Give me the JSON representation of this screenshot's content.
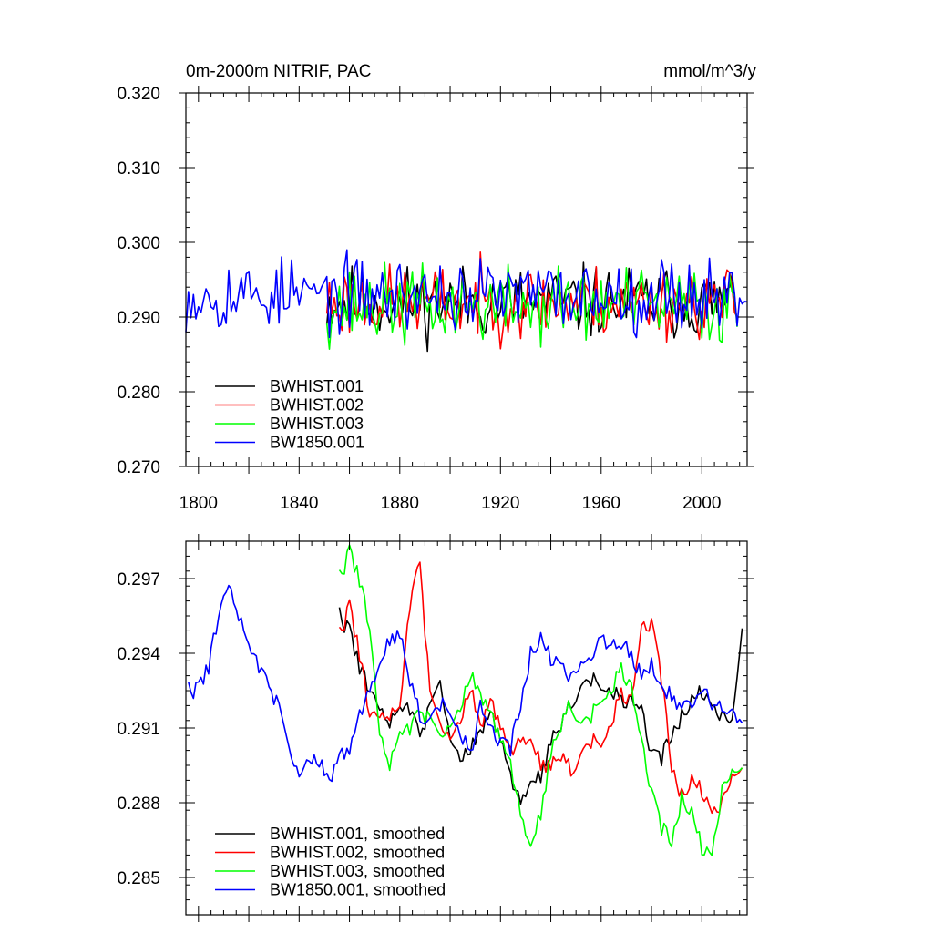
{
  "chart_data": [
    {
      "type": "line",
      "title": "0m-2000m NITRIF, PAC",
      "units": "mmol/m^3/y",
      "xlim": [
        1795,
        2018
      ],
      "ylim": [
        0.27,
        0.32
      ],
      "xticks": [
        1800,
        1840,
        1880,
        1920,
        1960,
        2000
      ],
      "xtick_labels": [
        "1800",
        "1840",
        "1880",
        "1920",
        "1960",
        "2000"
      ],
      "yticks": [
        0.27,
        0.28,
        0.29,
        0.3,
        0.31,
        0.32
      ],
      "ytick_labels": [
        "0.270",
        "0.280",
        "0.290",
        "0.300",
        "0.310",
        "0.320"
      ],
      "legend_position": "bottom-left",
      "series": [
        {
          "name": "BWHIST.001",
          "color": "#000000",
          "x_start": 1851,
          "x_end": 2014,
          "mean": 0.292,
          "amplitude": 0.0045,
          "seed": 11
        },
        {
          "name": "BWHIST.002",
          "color": "#ff0000",
          "x_start": 1851,
          "x_end": 2014,
          "mean": 0.292,
          "amplitude": 0.0045,
          "seed": 23
        },
        {
          "name": "BWHIST.003",
          "color": "#00ff00",
          "x_start": 1851,
          "x_end": 2014,
          "mean": 0.2915,
          "amplitude": 0.0048,
          "seed": 37
        },
        {
          "name": "BW1850.001",
          "color": "#0000ff",
          "x_start": 1795,
          "x_end": 2018,
          "mean": 0.293,
          "amplitude": 0.0045,
          "seed": 53
        }
      ]
    },
    {
      "type": "line",
      "xlim": [
        1795,
        2018
      ],
      "ylim": [
        0.2835,
        0.2985
      ],
      "xticks": [
        1800,
        1840,
        1880,
        1920,
        1960,
        2000
      ],
      "yticks": [
        0.285,
        0.288,
        0.291,
        0.294,
        0.297
      ],
      "ytick_labels": [
        "0.285",
        "0.288",
        "0.291",
        "0.294",
        "0.297"
      ],
      "legend_position": "bottom-left",
      "series": [
        {
          "name": "BWHIST.001, smoothed",
          "color": "#000000",
          "x": [
            1856,
            1860,
            1864,
            1868,
            1872,
            1876,
            1880,
            1884,
            1888,
            1892,
            1896,
            1900,
            1904,
            1908,
            1912,
            1916,
            1920,
            1924,
            1928,
            1932,
            1936,
            1940,
            1944,
            1948,
            1952,
            1956,
            1960,
            1964,
            1968,
            1972,
            1976,
            1980,
            1984,
            1988,
            1992,
            1996,
            2000,
            2004,
            2008,
            2012,
            2016
          ],
          "y": [
            0.2955,
            0.2948,
            0.2935,
            0.2925,
            0.2915,
            0.2912,
            0.292,
            0.2918,
            0.2905,
            0.292,
            0.2927,
            0.2905,
            0.29,
            0.29,
            0.291,
            0.2915,
            0.2905,
            0.289,
            0.288,
            0.2888,
            0.289,
            0.2905,
            0.2912,
            0.292,
            0.2925,
            0.293,
            0.2925,
            0.2925,
            0.2922,
            0.292,
            0.2918,
            0.29,
            0.2898,
            0.2908,
            0.2915,
            0.292,
            0.2925,
            0.2918,
            0.2915,
            0.2912,
            0.295
          ]
        },
        {
          "name": "BWHIST.002, smoothed",
          "color": "#ff0000",
          "x": [
            1856,
            1860,
            1864,
            1868,
            1872,
            1876,
            1880,
            1884,
            1888,
            1892,
            1896,
            1900,
            1904,
            1908,
            1912,
            1916,
            1920,
            1924,
            1928,
            1932,
            1936,
            1940,
            1944,
            1948,
            1952,
            1956,
            1960,
            1964,
            1968,
            1972,
            1976,
            1980,
            1984,
            1988,
            1992,
            1996,
            2000,
            2004,
            2008,
            2012,
            2016
          ],
          "y": [
            0.2947,
            0.2958,
            0.294,
            0.2915,
            0.2912,
            0.2915,
            0.292,
            0.296,
            0.2975,
            0.2925,
            0.291,
            0.2905,
            0.2915,
            0.2925,
            0.2912,
            0.292,
            0.291,
            0.29,
            0.2905,
            0.2905,
            0.2895,
            0.2895,
            0.29,
            0.2893,
            0.2898,
            0.2905,
            0.2902,
            0.2912,
            0.2925,
            0.292,
            0.295,
            0.2953,
            0.293,
            0.2895,
            0.2883,
            0.2888,
            0.2885,
            0.2875,
            0.288,
            0.289,
            0.2894
          ]
        },
        {
          "name": "BWHIST.003, smoothed",
          "color": "#00ff00",
          "x": [
            1856,
            1860,
            1864,
            1868,
            1872,
            1876,
            1880,
            1884,
            1888,
            1892,
            1896,
            1900,
            1904,
            1908,
            1912,
            1916,
            1920,
            1924,
            1928,
            1932,
            1936,
            1940,
            1944,
            1948,
            1952,
            1956,
            1960,
            1964,
            1968,
            1972,
            1976,
            1980,
            1984,
            1988,
            1992,
            1996,
            2000,
            2004,
            2008,
            2012,
            2016
          ],
          "y": [
            0.297,
            0.298,
            0.297,
            0.295,
            0.2905,
            0.2895,
            0.291,
            0.291,
            0.2915,
            0.2915,
            0.2905,
            0.291,
            0.292,
            0.293,
            0.2925,
            0.2915,
            0.2905,
            0.2895,
            0.2875,
            0.2862,
            0.2875,
            0.29,
            0.2912,
            0.292,
            0.291,
            0.2915,
            0.292,
            0.2925,
            0.2935,
            0.2925,
            0.2905,
            0.2885,
            0.287,
            0.2865,
            0.2882,
            0.2875,
            0.2862,
            0.2858,
            0.2885,
            0.2892,
            0.2894
          ]
        },
        {
          "name": "BW1850.001, smoothed",
          "color": "#0000ff",
          "x": [
            1796,
            1800,
            1804,
            1808,
            1812,
            1816,
            1820,
            1824,
            1828,
            1832,
            1836,
            1840,
            1844,
            1848,
            1852,
            1856,
            1860,
            1864,
            1868,
            1872,
            1876,
            1880,
            1884,
            1888,
            1892,
            1896,
            1900,
            1904,
            1908,
            1912,
            1916,
            1920,
            1924,
            1928,
            1932,
            1936,
            1940,
            1944,
            1948,
            1952,
            1956,
            1960,
            1964,
            1968,
            1972,
            1976,
            1980,
            1984,
            1988,
            1992,
            1996,
            2000,
            2004,
            2008,
            2012,
            2016
          ],
          "y": [
            0.2925,
            0.2925,
            0.2935,
            0.2955,
            0.2965,
            0.2955,
            0.2945,
            0.2935,
            0.2925,
            0.292,
            0.29,
            0.289,
            0.29,
            0.2895,
            0.289,
            0.2898,
            0.29,
            0.2915,
            0.2925,
            0.2935,
            0.2945,
            0.2948,
            0.293,
            0.2915,
            0.2912,
            0.292,
            0.2915,
            0.2908,
            0.29,
            0.2918,
            0.291,
            0.2905,
            0.2902,
            0.292,
            0.294,
            0.2945,
            0.2938,
            0.2935,
            0.293,
            0.2935,
            0.294,
            0.2945,
            0.2945,
            0.2945,
            0.2938,
            0.2932,
            0.2935,
            0.2928,
            0.2922,
            0.2918,
            0.2918,
            0.2925,
            0.292,
            0.2918,
            0.2915,
            0.2912
          ]
        }
      ]
    }
  ]
}
